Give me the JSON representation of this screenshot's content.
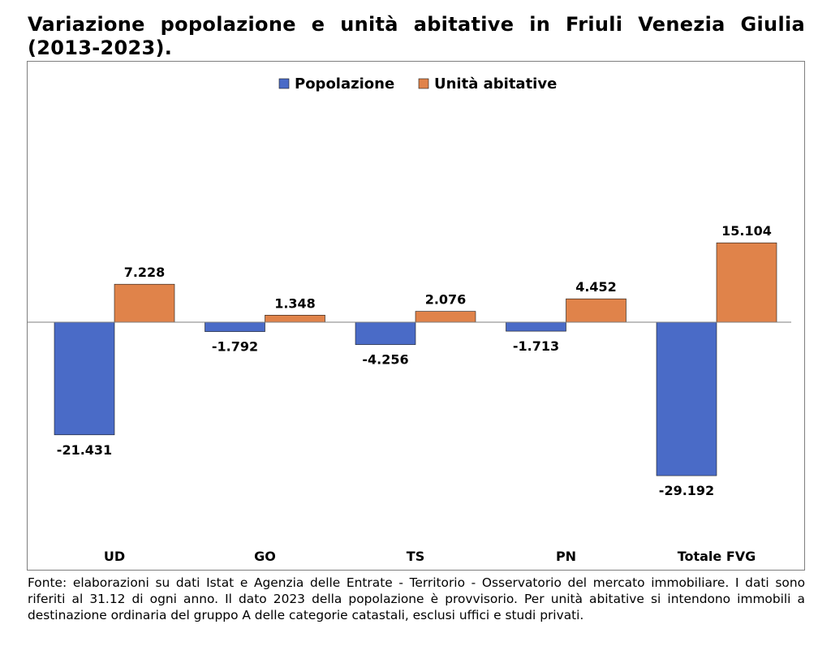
{
  "title": "Variazione popolazione e unità abitative in Friuli Venezia Giulia (2013-2023).",
  "note": "Fonte: elaborazioni su dati Istat e Agenzia delle Entrate - Territorio - Osservatorio del mercato immobiliare. I dati sono riferiti al 31.12 di ogni anno. Il dato 2023 della popolazione è provvisorio. Per unità abitative si intendono immobili a destinazione ordinaria del gruppo A delle categorie catastali, esclusi uffici e studi privati.",
  "colors": {
    "popolazione": "#4A6BC7",
    "unita": "#E0834A",
    "outline": "#1a1a1a",
    "axis": "#7f7f7f"
  },
  "chart_data": {
    "type": "bar",
    "title": "Variazione popolazione e unità abitative in Friuli Venezia Giulia (2013-2023).",
    "categories": [
      "UD",
      "GO",
      "TS",
      "PN",
      "Totale FVG"
    ],
    "series": [
      {
        "name": "Popolazione",
        "values": [
          -21431,
          -1792,
          -4256,
          -1713,
          -29192
        ],
        "labels": [
          "-21.431",
          "-1.792",
          "-4.256",
          "-1.713",
          "-29.192"
        ]
      },
      {
        "name": "Unità abitative",
        "values": [
          7228,
          1348,
          2076,
          4452,
          15104
        ],
        "labels": [
          "7.228",
          "1.348",
          "2.076",
          "4.452",
          "15.104"
        ]
      }
    ],
    "xlabel": "",
    "ylabel": "",
    "ylim": [
      -40000,
      35000
    ],
    "grid": false,
    "legend": "top-center"
  }
}
